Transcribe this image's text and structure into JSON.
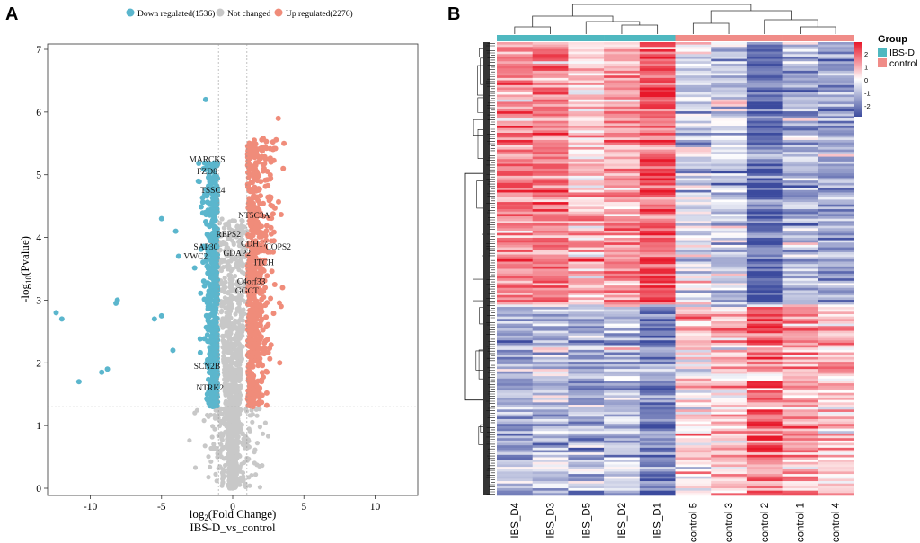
{
  "panel_a": {
    "letter": "A",
    "legend": [
      {
        "label": "Down regulated(1536)",
        "color": "#5bb6cd"
      },
      {
        "label": "Not changed",
        "color": "#c8c8c8"
      },
      {
        "label": "Up regulated(2276)",
        "color": "#f08c7a"
      }
    ],
    "xlabel_main": "log",
    "xlabel_sub": "2",
    "xlabel_rest": "(Fold Change)",
    "ylabel_main": "-log",
    "ylabel_sub": "10",
    "ylabel_rest": "(Pvalue)",
    "subtitle": "IBS-D_vs_control"
  },
  "panel_b": {
    "letter": "B",
    "legend_title": "Group",
    "legend_items": [
      {
        "label": "IBS-D",
        "color": "#4fb8c0"
      },
      {
        "label": "control",
        "color": "#f08c88"
      }
    ],
    "colorbar_ticks": [
      "2",
      "1",
      "0",
      "-1",
      "-2"
    ],
    "colorbar_colors": {
      "high": "#e8182a",
      "mid": "#ffffff",
      "low": "#3c4b9e"
    }
  },
  "chart_data": [
    {
      "type": "scatter",
      "title": "",
      "xlabel": "log2(Fold Change)",
      "ylabel": "-log10(Pvalue)",
      "xlim": [
        -13,
        13
      ],
      "ylim": [
        0,
        7
      ],
      "xticks": [
        -10,
        -5,
        0,
        5,
        10
      ],
      "yticks": [
        0,
        1,
        2,
        3,
        4,
        5,
        6,
        7
      ],
      "thresholds": {
        "fold_change_x": [
          -1,
          1
        ],
        "pvalue_y": 1.3
      },
      "series": [
        {
          "name": "Down regulated",
          "count": 1536,
          "color": "#5bb6cd",
          "outliers": [
            [
              -12.4,
              2.8
            ],
            [
              -12.0,
              2.7
            ],
            [
              -10.8,
              1.7
            ],
            [
              -9.2,
              1.85
            ],
            [
              -8.8,
              1.9
            ],
            [
              -8.2,
              2.95
            ],
            [
              -8.1,
              3.0
            ],
            [
              -5.5,
              2.7
            ],
            [
              -5.0,
              2.75
            ],
            [
              -5.0,
              4.3
            ],
            [
              -4.2,
              2.2
            ],
            [
              -4.0,
              4.1
            ],
            [
              -3.8,
              3.7
            ],
            [
              -1.9,
              6.2
            ]
          ]
        },
        {
          "name": "Not changed",
          "color": "#c8c8c8"
        },
        {
          "name": "Up regulated",
          "count": 2276,
          "color": "#f08c7a",
          "outliers": [
            [
              3.2,
              5.9
            ],
            [
              3.6,
              5.5
            ],
            [
              3.5,
              3.2
            ],
            [
              3.4,
              2.9
            ],
            [
              3.3,
              2.0
            ],
            [
              2.8,
              4.5
            ]
          ]
        }
      ],
      "annotations": [
        {
          "label": "MARCKS",
          "x": -1.8,
          "y": 5.25
        },
        {
          "label": "FZD8",
          "x": -1.8,
          "y": 5.05
        },
        {
          "label": "TSSC4",
          "x": -1.4,
          "y": 4.75
        },
        {
          "label": "NT5C3A",
          "x": 1.5,
          "y": 4.35
        },
        {
          "label": "REPS2",
          "x": -0.3,
          "y": 4.05
        },
        {
          "label": "CDH17",
          "x": 1.5,
          "y": 3.9
        },
        {
          "label": "SAP30",
          "x": -1.9,
          "y": 3.85
        },
        {
          "label": "COPS2",
          "x": 3.2,
          "y": 3.85
        },
        {
          "label": "GDAP2",
          "x": 0.3,
          "y": 3.75
        },
        {
          "label": "VWC2",
          "x": -2.6,
          "y": 3.7
        },
        {
          "label": "ITCH",
          "x": 2.2,
          "y": 3.6
        },
        {
          "label": "C4orf33",
          "x": 1.3,
          "y": 3.3
        },
        {
          "label": "GGCT",
          "x": 1.0,
          "y": 3.15
        },
        {
          "label": "SCN2B",
          "x": -1.8,
          "y": 1.95
        },
        {
          "label": "NTRK2",
          "x": -1.6,
          "y": 1.6
        }
      ]
    },
    {
      "type": "heatmap",
      "title": "",
      "columns": [
        "IBS_D4",
        "IBS_D3",
        "IBS_D5",
        "IBS_D2",
        "IBS_D1",
        "control 5",
        "control 3",
        "control 2",
        "control 1",
        "control 4"
      ],
      "column_groups": [
        "IBS-D",
        "IBS-D",
        "IBS-D",
        "IBS-D",
        "IBS-D",
        "control",
        "control",
        "control",
        "control",
        "control"
      ],
      "color_range": [
        -2.5,
        2.5
      ],
      "row_clusters": [
        {
          "name": "upper cluster (higher in IBS-D)",
          "fraction_of_rows": 0.58,
          "mean_z": [
            1.2,
            1.2,
            0.6,
            1.0,
            1.8,
            -0.5,
            -0.6,
            -2.0,
            -0.9,
            -1.1
          ]
        },
        {
          "name": "lower cluster (higher in control)",
          "fraction_of_rows": 0.42,
          "mean_z": [
            -1.0,
            -0.8,
            -1.1,
            -0.9,
            -1.7,
            0.3,
            0.5,
            1.5,
            0.9,
            0.8
          ]
        }
      ]
    }
  ]
}
